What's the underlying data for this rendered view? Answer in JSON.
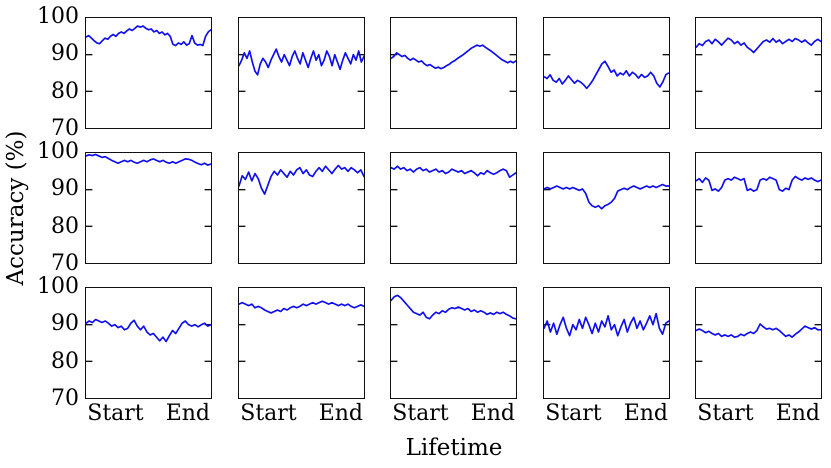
{
  "figure": {
    "ylabel": "Accuracy (%)",
    "xlabel": "Lifetime"
  },
  "chart_data": {
    "type": "line",
    "title": "",
    "ylabel": "Accuracy (%)",
    "xlabel": "Lifetime",
    "ylim": [
      70,
      100
    ],
    "yticks": [
      70,
      80,
      90,
      100
    ],
    "xticklabels": [
      "Start",
      "End"
    ],
    "grid": {
      "rows": 3,
      "cols": 5
    },
    "line_color": "#0d0dee",
    "legend": "none",
    "panels": [
      {
        "row": 1,
        "col": 1,
        "values": [
          94.8,
          95.2,
          94.5,
          93.8,
          93.2,
          93.0,
          93.8,
          94.5,
          94.2,
          95.0,
          95.5,
          95.0,
          95.8,
          96.2,
          95.8,
          96.5,
          97.0,
          96.6,
          97.2,
          97.8,
          97.5,
          97.8,
          97.2,
          96.8,
          97.0,
          96.2,
          96.6,
          95.8,
          96.2,
          95.4,
          95.8,
          95.0,
          92.8,
          92.5,
          93.2,
          92.8,
          93.5,
          92.6,
          93.0,
          95.2,
          93.2,
          92.6,
          92.8,
          92.5,
          95.0,
          96.2,
          96.8
        ]
      },
      {
        "row": 1,
        "col": 2,
        "values": [
          87.0,
          88.5,
          90.5,
          89.0,
          91.0,
          88.0,
          85.5,
          84.5,
          87.5,
          89.0,
          88.0,
          86.5,
          88.5,
          90.0,
          91.5,
          89.5,
          88.0,
          90.0,
          88.5,
          87.0,
          89.5,
          91.0,
          89.0,
          87.5,
          90.5,
          88.5,
          86.5,
          89.0,
          91.0,
          88.5,
          90.0,
          87.0,
          88.5,
          91.0,
          89.5,
          87.0,
          90.0,
          88.0,
          86.0,
          88.5,
          90.5,
          89.0,
          87.5,
          90.0,
          88.5,
          91.0,
          88.0,
          89.5
        ]
      },
      {
        "row": 1,
        "col": 3,
        "values": [
          89.0,
          89.5,
          90.5,
          90.0,
          89.5,
          89.8,
          89.0,
          88.5,
          89.0,
          88.5,
          88.0,
          88.3,
          87.5,
          87.0,
          87.3,
          86.8,
          86.3,
          86.6,
          86.2,
          86.5,
          87.0,
          87.4,
          88.0,
          88.4,
          89.0,
          89.5,
          90.0,
          90.6,
          91.2,
          91.8,
          92.2,
          92.6,
          92.3,
          92.6,
          92.0,
          91.5,
          91.0,
          90.4,
          89.8,
          89.2,
          88.6,
          88.2,
          87.8,
          88.2,
          87.8,
          88.3
        ]
      },
      {
        "row": 1,
        "col": 4,
        "values": [
          84.0,
          83.5,
          84.5,
          83.0,
          82.5,
          83.5,
          82.0,
          83.0,
          84.2,
          83.2,
          82.2,
          83.0,
          82.5,
          81.8,
          80.8,
          81.8,
          83.0,
          84.5,
          86.0,
          87.5,
          88.2,
          86.8,
          85.2,
          85.8,
          84.2,
          85.0,
          84.5,
          85.6,
          84.2,
          85.2,
          84.6,
          83.6,
          84.6,
          83.8,
          84.2,
          85.2,
          84.2,
          82.2,
          81.2,
          82.6,
          84.6,
          85.0
        ]
      },
      {
        "row": 1,
        "col": 5,
        "values": [
          92.0,
          93.0,
          92.5,
          93.6,
          94.0,
          93.0,
          94.2,
          93.5,
          92.6,
          93.6,
          94.5,
          94.0,
          93.0,
          93.6,
          92.6,
          93.2,
          92.0,
          91.4,
          90.6,
          91.6,
          92.6,
          93.6,
          94.0,
          93.4,
          94.4,
          93.4,
          94.0,
          93.0,
          93.6,
          94.2,
          93.6,
          94.4,
          94.0,
          93.4,
          94.0,
          93.2,
          92.6,
          93.6,
          94.2,
          93.6
        ]
      },
      {
        "row": 2,
        "col": 1,
        "values": [
          99.2,
          99.5,
          99.3,
          99.6,
          99.2,
          98.8,
          99.0,
          98.5,
          98.0,
          97.6,
          97.2,
          97.6,
          98.0,
          97.6,
          98.0,
          97.5,
          97.2,
          97.6,
          98.0,
          97.6,
          98.1,
          98.4,
          98.0,
          97.6,
          98.0,
          97.5,
          97.2,
          97.6,
          97.2,
          97.6,
          98.0,
          98.4,
          98.3,
          98.0,
          97.5,
          97.1,
          96.8,
          97.2,
          96.7,
          97.0
        ]
      },
      {
        "row": 2,
        "col": 2,
        "values": [
          91.0,
          93.8,
          92.8,
          94.8,
          92.4,
          94.4,
          93.0,
          90.4,
          88.8,
          91.2,
          93.6,
          95.0,
          94.0,
          95.4,
          94.4,
          93.4,
          95.0,
          94.0,
          95.4,
          96.0,
          94.4,
          95.4,
          94.0,
          93.6,
          95.0,
          96.0,
          95.0,
          96.4,
          95.4,
          94.4,
          95.6,
          96.6,
          95.6,
          96.0,
          95.0,
          96.0,
          95.4,
          94.6,
          95.4,
          93.6
        ]
      },
      {
        "row": 2,
        "col": 3,
        "values": [
          96.0,
          95.6,
          96.4,
          95.6,
          96.0,
          95.2,
          95.6,
          94.8,
          95.6,
          96.0,
          95.2,
          95.6,
          94.8,
          95.2,
          95.6,
          94.8,
          95.2,
          94.4,
          94.8,
          95.6,
          95.2,
          94.8,
          95.2,
          94.4,
          94.8,
          95.2,
          94.6,
          93.8,
          94.6,
          94.2,
          95.2,
          94.6,
          94.2,
          94.6,
          95.2,
          95.6,
          95.2,
          93.4,
          94.0,
          94.6
        ]
      },
      {
        "row": 2,
        "col": 4,
        "values": [
          90.2,
          90.6,
          90.2,
          90.6,
          91.0,
          90.6,
          90.2,
          90.6,
          90.2,
          90.6,
          90.2,
          89.8,
          90.2,
          89.0,
          86.6,
          85.6,
          85.2,
          85.6,
          84.8,
          85.6,
          86.0,
          86.6,
          87.6,
          89.6,
          90.0,
          90.4,
          90.0,
          90.6,
          91.0,
          90.6,
          90.2,
          90.6,
          91.0,
          90.6,
          91.0,
          90.6,
          91.0,
          91.4,
          91.0,
          91.0
        ]
      },
      {
        "row": 2,
        "col": 5,
        "values": [
          92.4,
          93.0,
          92.0,
          93.2,
          92.6,
          89.8,
          90.2,
          89.6,
          90.6,
          92.6,
          93.0,
          92.6,
          93.4,
          93.0,
          92.6,
          93.0,
          89.8,
          90.2,
          89.6,
          90.0,
          92.6,
          93.0,
          92.6,
          93.4,
          93.0,
          92.6,
          90.0,
          89.6,
          90.4,
          90.0,
          92.6,
          93.6,
          93.0,
          92.6,
          93.2,
          92.8,
          93.2,
          92.6,
          92.2,
          92.6
        ]
      },
      {
        "row": 3,
        "col": 1,
        "values": [
          90.4,
          91.0,
          90.6,
          91.4,
          91.0,
          90.6,
          91.0,
          90.4,
          89.6,
          90.0,
          89.2,
          89.6,
          88.6,
          89.0,
          90.4,
          91.2,
          89.6,
          88.6,
          89.6,
          88.0,
          87.2,
          87.6,
          86.6,
          85.6,
          86.6,
          85.4,
          87.0,
          88.4,
          87.6,
          89.0,
          90.4,
          91.0,
          90.0,
          89.6,
          90.0,
          89.4,
          90.0,
          90.4,
          89.6,
          90.0
        ]
      },
      {
        "row": 3,
        "col": 2,
        "values": [
          95.6,
          96.0,
          95.6,
          95.2,
          95.6,
          94.6,
          95.0,
          94.6,
          94.0,
          93.6,
          93.2,
          93.6,
          94.0,
          93.6,
          94.4,
          94.0,
          94.6,
          95.0,
          94.6,
          95.0,
          95.6,
          95.2,
          95.6,
          96.0,
          95.6,
          96.0,
          96.4,
          96.0,
          95.6,
          96.0,
          95.6,
          95.2,
          95.6,
          95.2,
          95.6,
          95.0,
          94.6,
          95.0,
          95.4,
          95.0
        ]
      },
      {
        "row": 3,
        "col": 3,
        "values": [
          96.6,
          97.6,
          98.0,
          97.4,
          96.4,
          95.4,
          94.4,
          93.4,
          93.0,
          92.6,
          93.4,
          92.0,
          91.6,
          92.6,
          93.4,
          93.0,
          93.8,
          93.4,
          94.2,
          94.6,
          94.4,
          94.8,
          94.4,
          94.0,
          94.4,
          93.6,
          94.0,
          93.4,
          93.8,
          93.4,
          92.8,
          93.2,
          92.8,
          93.4,
          93.0,
          93.4,
          92.8,
          92.4,
          91.8,
          91.6
        ]
      },
      {
        "row": 3,
        "col": 4,
        "values": [
          89.0,
          91.0,
          88.0,
          90.4,
          87.4,
          90.0,
          92.0,
          89.0,
          87.0,
          90.0,
          88.6,
          91.4,
          89.0,
          92.0,
          90.0,
          87.6,
          90.4,
          88.0,
          91.0,
          89.4,
          92.4,
          88.6,
          90.0,
          87.0,
          89.4,
          91.4,
          88.0,
          90.4,
          92.0,
          89.0,
          91.0,
          88.6,
          90.4,
          92.4,
          90.0,
          93.0,
          89.0,
          87.4,
          90.4,
          91.0
        ]
      },
      {
        "row": 3,
        "col": 5,
        "values": [
          88.4,
          88.8,
          88.4,
          87.8,
          88.2,
          87.6,
          87.2,
          87.6,
          86.8,
          87.2,
          86.8,
          87.2,
          86.6,
          86.8,
          87.4,
          87.0,
          87.6,
          88.0,
          87.6,
          88.4,
          90.2,
          89.4,
          88.8,
          89.0,
          88.6,
          89.0,
          88.4,
          87.6,
          86.8,
          87.2,
          86.6,
          87.4,
          88.0,
          88.8,
          89.6,
          89.2,
          88.8,
          89.2,
          88.6,
          88.6
        ]
      }
    ]
  }
}
